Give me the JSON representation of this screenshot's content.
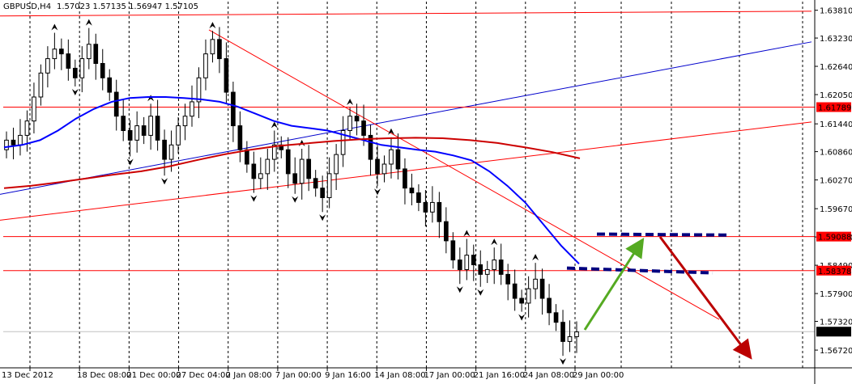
{
  "header": {
    "symbol": "GBPUSD,H4",
    "ohlc": "1.57023 1.57135 1.56947 1.57105"
  },
  "colors": {
    "background": "#ffffff",
    "candle": "#000000",
    "grid": "#000000",
    "ma_fast": "#0000ff",
    "ma_slow": "#cc0000",
    "level_line": "#ff0000",
    "dashed_zone": "#000080",
    "arrow_up": "#55aa22",
    "arrow_down": "#bb0000",
    "current_price_bg": "#000000",
    "level_label_bg": "#ff0000"
  },
  "chart_data": {
    "type": "candlestick",
    "symbol": "GBPUSD",
    "timeframe": "H4",
    "ylim": [
      1.5635,
      1.6399
    ],
    "price_ticks": [
      "1.63810",
      "1.63230",
      "1.62640",
      "1.62050",
      "1.61440",
      "1.60860",
      "1.60270",
      "1.59670",
      "1.59080",
      "1.58490",
      "1.57900",
      "1.57320",
      "1.56720"
    ],
    "time_ticks": [
      "13 Dec 2012",
      "18 Dec 08:00",
      "21 Dec 00:00",
      "27 Dec 04:00",
      "2 Jan 08:00",
      "7 Jan 00:00",
      "9 Jan 16:00",
      "14 Jan 08:00",
      "17 Jan 00:00",
      "21 Jan 16:00",
      "24 Jan 08:00",
      "29 Jan 00:00"
    ],
    "current_price": "1.57105",
    "horizontal_levels": [
      "1.61789",
      "1.59088",
      "1.58378"
    ],
    "close_series": [
      1.611,
      1.61,
      1.612,
      1.615,
      1.62,
      1.625,
      1.628,
      1.63,
      1.629,
      1.626,
      1.624,
      1.628,
      1.631,
      1.627,
      1.624,
      1.621,
      1.616,
      1.613,
      1.611,
      1.614,
      1.612,
      1.616,
      1.611,
      1.607,
      1.61,
      1.614,
      1.616,
      1.619,
      1.624,
      1.629,
      1.632,
      1.628,
      1.621,
      1.614,
      1.609,
      1.606,
      1.603,
      1.604,
      1.607,
      1.61,
      1.609,
      1.604,
      1.602,
      1.607,
      1.603,
      1.601,
      1.599,
      1.604,
      1.608,
      1.613,
      1.616,
      1.615,
      1.612,
      1.607,
      1.604,
      1.606,
      1.609,
      1.605,
      1.601,
      1.6,
      1.598,
      1.596,
      1.598,
      1.594,
      1.59,
      1.586,
      1.584,
      1.587,
      1.585,
      1.583,
      1.584,
      1.586,
      1.583,
      1.581,
      1.578,
      1.577,
      1.58,
      1.582,
      1.578,
      1.575,
      1.573,
      1.569,
      1.57,
      1.571
    ],
    "overlays": [
      {
        "name": "moving-average-fast",
        "color": "#0000ff",
        "values": [
          1.6095,
          1.61,
          1.611,
          1.613,
          1.6155,
          1.6175,
          1.619,
          1.6198,
          1.62,
          1.62,
          1.6198,
          1.6195,
          1.619,
          1.618,
          1.6165,
          1.615,
          1.614,
          1.6135,
          1.613,
          1.612,
          1.611,
          1.61,
          1.6095,
          1.609,
          1.6086,
          1.6078,
          1.6068,
          1.6045,
          1.6015,
          1.598,
          1.5935,
          1.589,
          1.5852
        ]
      },
      {
        "name": "moving-average-slow",
        "color": "#cc0000",
        "values": [
          1.601,
          1.6015,
          1.6022,
          1.603,
          1.6038,
          1.6045,
          1.6055,
          1.6068,
          1.608,
          1.609,
          1.6098,
          1.6103,
          1.6108,
          1.6112,
          1.6114,
          1.6115,
          1.6114,
          1.611,
          1.6104,
          1.6095,
          1.6085,
          1.6072
        ]
      }
    ]
  }
}
